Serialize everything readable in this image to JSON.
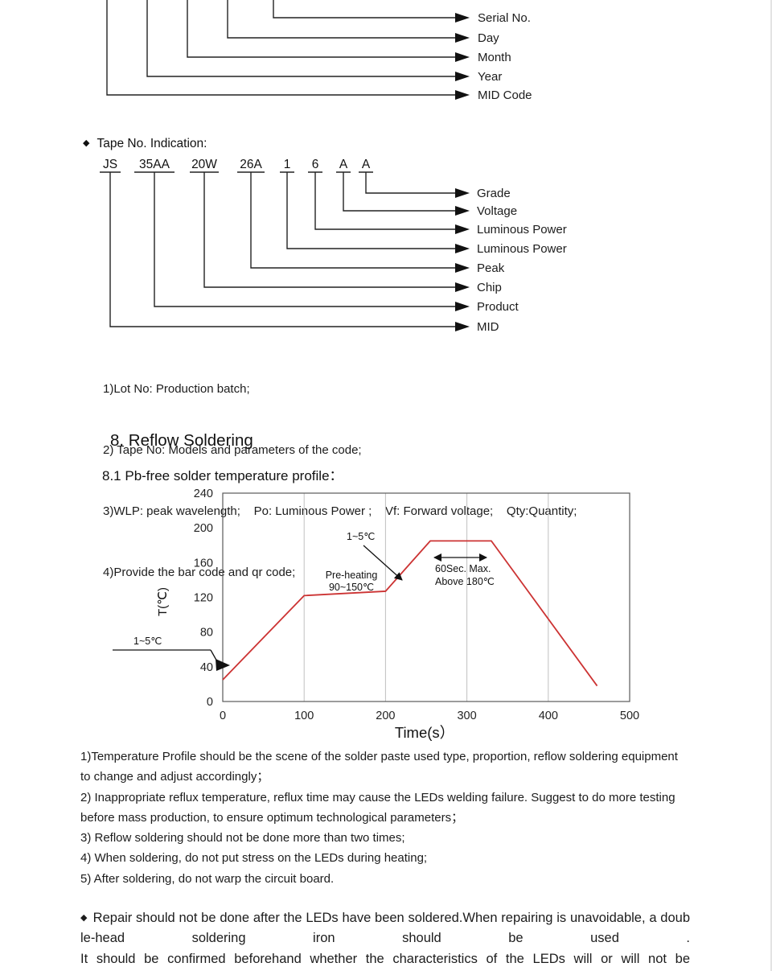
{
  "page": {
    "background": "#ffffff",
    "text_color": "#1c1c1c"
  },
  "lot_diagram": {
    "labels": [
      "Serial No.",
      "Day",
      "Month",
      "Year",
      "MID Code"
    ]
  },
  "tape_section": {
    "bullet": "◆",
    "title": "Tape No. Indication:",
    "codes": [
      "JS",
      "35AA",
      "20W",
      "26A",
      "1",
      "6",
      "A",
      "A"
    ],
    "labels": [
      "Grade",
      "Voltage",
      "Luminous Power",
      "Luminous Power",
      "Peak",
      "Chip",
      "Product",
      "MID"
    ],
    "notes": [
      "1)Lot No: Production batch;",
      "2) Tape No: Models and parameters of the code;",
      "3)WLP: peak wavelength;    Po: Luminous Power ;    Vf: Forward voltage;    Qty:Quantity;",
      "4)Provide the bar code and qr code;"
    ]
  },
  "reflow_section": {
    "heading": "8. Reflow Soldering",
    "subheading": "8.1 Pb-free solder temperature profile："
  },
  "chart_data": {
    "type": "line",
    "title": "",
    "xlabel": "Time(s）",
    "ylabel": "T(℃)",
    "xlim": [
      0,
      500
    ],
    "ylim": [
      0,
      240
    ],
    "x_ticks": [
      0,
      100,
      200,
      300,
      400,
      500
    ],
    "y_ticks": [
      240,
      200,
      160,
      120,
      80,
      40,
      0
    ],
    "grid": "vertical",
    "legend": "none",
    "line_color": "#cc3333",
    "series": [
      {
        "name": "pb-free-solder-temperature-profile",
        "points_time_temp": [
          [
            0,
            25
          ],
          [
            100,
            122
          ],
          [
            200,
            127
          ],
          [
            255,
            185
          ],
          [
            330,
            185
          ],
          [
            460,
            18
          ]
        ]
      }
    ],
    "annotations": {
      "ramp_rate": "1~5℃",
      "preheat_label": "Pre-heating",
      "preheat_range": "90~150℃",
      "peak_hold_line1": "60Sec. Max.",
      "peak_hold_line2": "Above 180℃",
      "initial_ramp_rate": "1~5℃"
    }
  },
  "chart_notes": [
    "1)Temperature Profile should be the scene of the solder paste used type, proportion, reflow soldering equipment to change and adjust accordingly；",
    "2) Inappropriate reflux temperature, reflux time may cause the LEDs welding failure. Suggest to do more testing before mass production, to ensure optimum technological parameters；",
    "3) Reflow soldering should not be done more than two times;",
    "4) When soldering, do not put stress on the LEDs during heating;",
    "5) After soldering, do not warp the circuit board."
  ],
  "repair_note": {
    "bullet": "◆",
    "line1": "Repair should not be done after the LEDs have been soldered.When repairing is unavoidable, a double-head soldering iron should be used .",
    "line2": "It should be confirmed beforehand whether the characteristics of the LEDs will or will not be"
  }
}
